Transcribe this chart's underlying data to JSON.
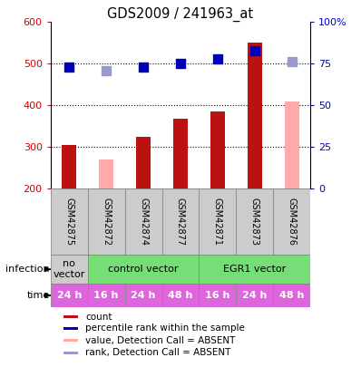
{
  "title": "GDS2009 / 241963_at",
  "samples": [
    "GSM42875",
    "GSM42872",
    "GSM42874",
    "GSM42877",
    "GSM42871",
    "GSM42873",
    "GSM42876"
  ],
  "count_values": [
    305,
    null,
    325,
    368,
    385,
    550,
    null
  ],
  "count_absent_values": [
    null,
    270,
    null,
    null,
    null,
    null,
    410
  ],
  "rank_pct": [
    73,
    null,
    73,
    75,
    78,
    83,
    null
  ],
  "rank_absent_pct": [
    null,
    71,
    null,
    null,
    null,
    null,
    76
  ],
  "ylim": [
    200,
    600
  ],
  "yticks": [
    200,
    300,
    400,
    500,
    600
  ],
  "y2lim": [
    0,
    100
  ],
  "y2ticks": [
    0,
    25,
    50,
    75,
    100
  ],
  "y2ticklabels": [
    "0",
    "25",
    "50",
    "75",
    "100%"
  ],
  "time_labels": [
    "24 h",
    "16 h",
    "24 h",
    "48 h",
    "16 h",
    "24 h",
    "48 h"
  ],
  "inf_groups": [
    {
      "label": "no\nvector",
      "start": 0,
      "end": 1,
      "color": "#cccccc"
    },
    {
      "label": "control vector",
      "start": 1,
      "end": 4,
      "color": "#77dd77"
    },
    {
      "label": "EGR1 vector",
      "start": 4,
      "end": 7,
      "color": "#77dd77"
    }
  ],
  "time_color": "#dd66dd",
  "bar_color": "#bb1111",
  "absent_bar_color": "#ffaaaa",
  "rank_color": "#0000bb",
  "rank_absent_color": "#9999cc",
  "left_tick_color": "#cc0000",
  "right_tick_color": "#0000cc",
  "legend_items": [
    {
      "label": "count",
      "color": "#bb1111"
    },
    {
      "label": "percentile rank within the sample",
      "color": "#0000bb"
    },
    {
      "label": "value, Detection Call = ABSENT",
      "color": "#ffaaaa"
    },
    {
      "label": "rank, Detection Call = ABSENT",
      "color": "#9999cc"
    }
  ],
  "bar_width": 0.4,
  "dot_size": 55
}
